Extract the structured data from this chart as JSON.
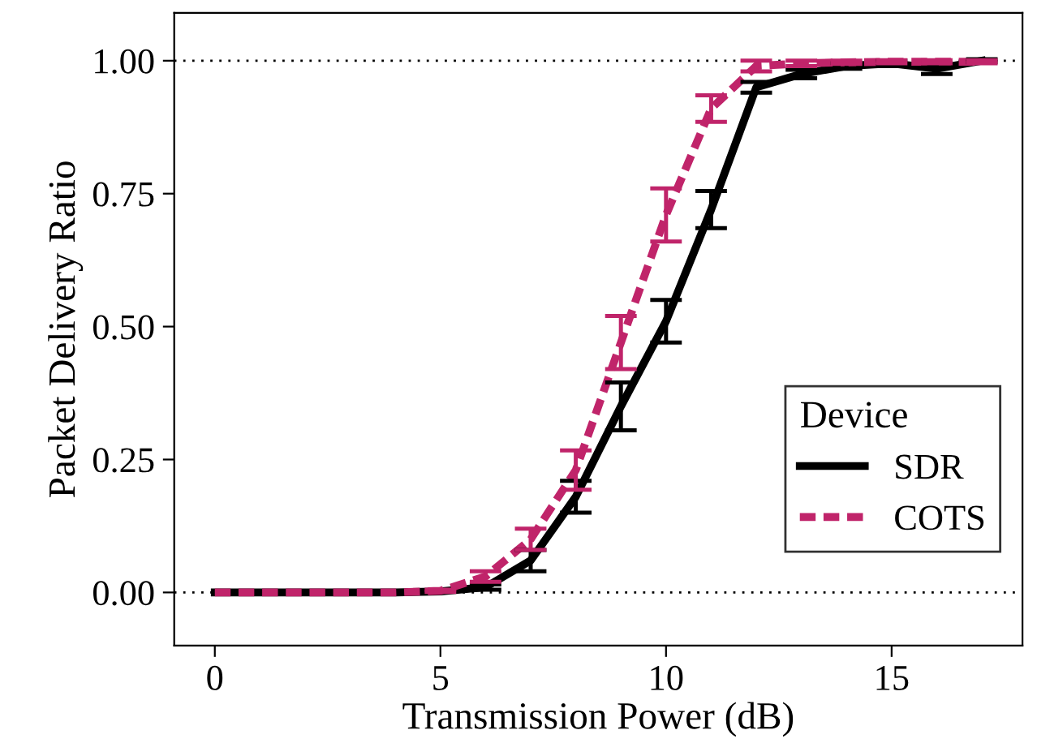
{
  "chart_data": {
    "type": "line",
    "xlabel": "Transmission Power (dB)",
    "ylabel": "Packet Delivery Ratio",
    "legend_title": "Device",
    "legend": "bottom right",
    "x": [
      0,
      1,
      2,
      3,
      4,
      5,
      6,
      7,
      8,
      9,
      10,
      11,
      12,
      13,
      14,
      15,
      16,
      17
    ],
    "series": [
      {
        "name": "SDR",
        "color": "#000000",
        "line_style": "solid",
        "values": [
          0,
          0,
          0,
          0,
          0,
          0.002,
          0.01,
          0.06,
          0.18,
          0.35,
          0.51,
          0.72,
          0.95,
          0.975,
          0.99,
          0.995,
          0.985,
          1.0
        ],
        "errors": [
          null,
          null,
          null,
          null,
          null,
          null,
          0.005,
          0.02,
          0.03,
          0.045,
          0.04,
          0.035,
          0.01,
          0.008,
          0.005,
          0.005,
          0.01,
          0.003
        ]
      },
      {
        "name": "COTS",
        "color": "#c0246a",
        "line_style": "dashed",
        "values": [
          0,
          0,
          0,
          0,
          0,
          0.003,
          0.03,
          0.1,
          0.23,
          0.47,
          0.71,
          0.91,
          0.99,
          0.995,
          0.997,
          0.998,
          0.998,
          0.998
        ],
        "errors": [
          null,
          null,
          null,
          null,
          null,
          0.002,
          0.01,
          0.02,
          0.037,
          0.05,
          0.05,
          0.025,
          0.01,
          0.005,
          0.003,
          0.003,
          0.003,
          0.003
        ]
      }
    ],
    "xlim": [
      -0.9,
      17.9
    ],
    "ylim": [
      -0.1,
      1.09
    ],
    "xticks": [
      0,
      5,
      10,
      15
    ],
    "yticks": [
      {
        "value": 0,
        "label": "0.00"
      },
      {
        "value": 0.25,
        "label": "0.25"
      },
      {
        "value": 0.5,
        "label": "0.50"
      },
      {
        "value": 0.75,
        "label": "0.75"
      },
      {
        "value": 1,
        "label": "1.00"
      }
    ],
    "ref_lines": [
      {
        "axis": "y",
        "value": 0,
        "line_style": "dotted",
        "color": "#000000"
      },
      {
        "axis": "y",
        "value": 1,
        "line_style": "dotted",
        "color": "#000000"
      }
    ],
    "grid": false
  }
}
